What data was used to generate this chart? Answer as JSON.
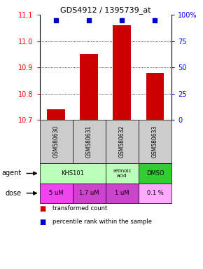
{
  "title": "GDS4912 / 1395739_at",
  "samples": [
    "GSM580630",
    "GSM580631",
    "GSM580632",
    "GSM580633"
  ],
  "bar_values": [
    10.74,
    10.95,
    11.06,
    10.88
  ],
  "ylim": [
    10.7,
    11.1
  ],
  "yticks": [
    10.7,
    10.8,
    10.9,
    11.0,
    11.1
  ],
  "right_yticks": [
    0,
    25,
    50,
    75,
    100
  ],
  "bar_color": "#cc0000",
  "dot_color": "#0000cc",
  "bar_bottom": 10.7,
  "doses": [
    "5 uM",
    "1.7 uM",
    "1 uM",
    "0.1 %"
  ],
  "dose_colors": [
    "#ee44ee",
    "#cc44cc",
    "#cc44cc",
    "#ffaaff"
  ],
  "sample_bg": "#cccccc",
  "agent_spans": [
    [
      0,
      2,
      "KHS101",
      "#bbffbb"
    ],
    [
      2,
      3,
      "retinoic\nacid",
      "#bbffbb"
    ],
    [
      3,
      4,
      "DMSO",
      "#33cc33"
    ]
  ],
  "legend_red": "transformed count",
  "legend_blue": "percentile rank within the sample"
}
